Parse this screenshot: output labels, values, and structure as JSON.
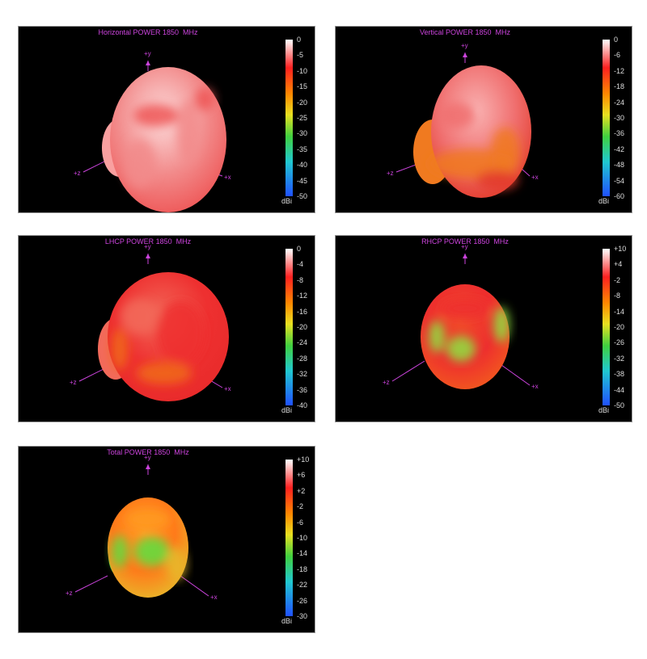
{
  "panels": [
    {
      "title": "Horizontal POWER 1850  MHz",
      "unit": "dBi",
      "ticks": [
        "0",
        "-5",
        "-10",
        "-15",
        "-20",
        "-25",
        "-30",
        "-35",
        "-40",
        "-45",
        "-50"
      ],
      "axes": {
        "y": "+y",
        "z": "+z",
        "x": "+x"
      },
      "body_colors": [
        "#fcdcdc",
        "#f28b8b",
        "#ee5555",
        "#f9a0a0"
      ]
    },
    {
      "title": "Vertical POWER 1850  MHz",
      "unit": "dBi",
      "ticks": [
        "0",
        "-6",
        "-12",
        "-18",
        "-24",
        "-30",
        "-36",
        "-42",
        "-48",
        "-54",
        "-60"
      ],
      "axes": {
        "y": "+y",
        "z": "+z",
        "x": "+x"
      },
      "body_colors": [
        "#f9b2b2",
        "#f07070",
        "#e33b2b",
        "#f07a20"
      ]
    },
    {
      "title": "LHCP POWER 1850  MHz",
      "unit": "dBi",
      "ticks": [
        "0",
        "-4",
        "-8",
        "-12",
        "-16",
        "-20",
        "-24",
        "-28",
        "-32",
        "-36",
        "-40"
      ],
      "axes": {
        "y": "+y",
        "z": "+z",
        "x": "+x"
      },
      "body_colors": [
        "#f26a5a",
        "#ee3030",
        "#e82a2a",
        "#f06a1a"
      ]
    },
    {
      "title": "RHCP POWER 1850  MHz",
      "unit": "dBi",
      "ticks": [
        "+10",
        "+4",
        "-2",
        "-8",
        "-14",
        "-20",
        "-26",
        "-32",
        "-38",
        "-44",
        "-50"
      ],
      "axes": {
        "y": "+y",
        "z": "+z",
        "x": "+x"
      },
      "body_colors": [
        "#f04a2a",
        "#ee2e2e",
        "#f25a1e",
        "#8ee040"
      ]
    },
    {
      "title": "Total POWER 1850  MHz",
      "unit": "dBi",
      "ticks": [
        "+10",
        "+6",
        "+2",
        "-2",
        "-6",
        "-10",
        "-14",
        "-18",
        "-22",
        "-26",
        "-30"
      ],
      "axes": {
        "y": "+y",
        "z": "+z",
        "x": "+x"
      },
      "body_colors": [
        "#ff9a22",
        "#ff7a1a",
        "#e8b82a",
        "#5ce040"
      ]
    }
  ]
}
